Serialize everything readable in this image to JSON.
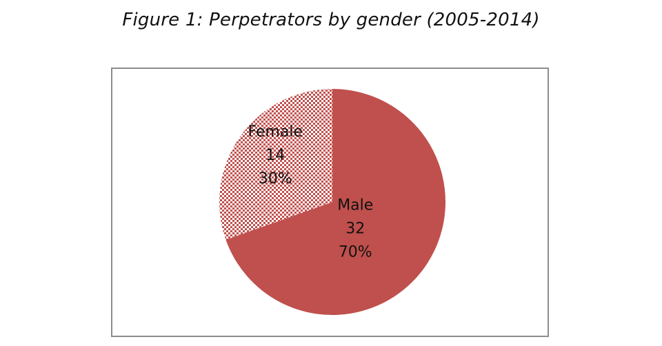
{
  "figure": {
    "title": "Figure 1:  Perpetrators by gender (2005-2014)"
  },
  "colors": {
    "male": "#c0504d",
    "female_pattern_bg": "#c0504d",
    "female_pattern_dot": "#ffffff",
    "frame_border": "#8c8c8c"
  },
  "chart_data": {
    "type": "pie",
    "title": "",
    "categories": [
      "Male",
      "Female"
    ],
    "values": [
      32,
      14
    ],
    "percentages": [
      "70%",
      "30%"
    ],
    "value_labels": [
      "32",
      "14"
    ],
    "legend": "none"
  }
}
